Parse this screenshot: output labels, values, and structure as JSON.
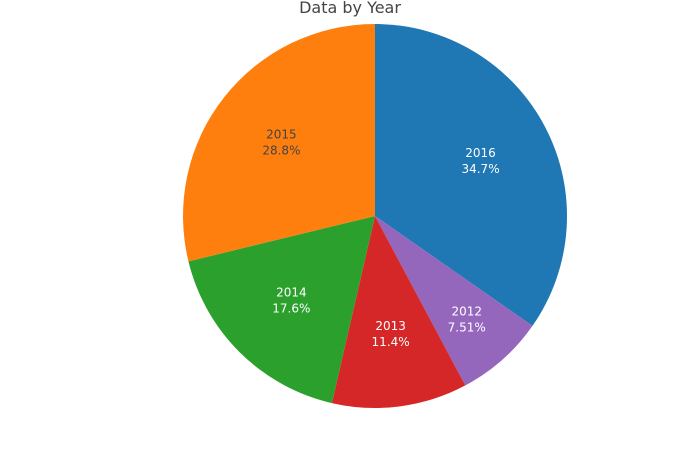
{
  "chart_data": {
    "type": "pie",
    "title": "Data by Year",
    "slices": [
      {
        "label": "2016",
        "percent_text": "34.7%",
        "value": 34.7,
        "color": "#1f77b4",
        "text_color": "#ffffff"
      },
      {
        "label": "2012",
        "percent_text": "7.51%",
        "value": 7.51,
        "color": "#9467bd",
        "text_color": "#ffffff"
      },
      {
        "label": "2013",
        "percent_text": "11.4%",
        "value": 11.4,
        "color": "#d62728",
        "text_color": "#ffffff"
      },
      {
        "label": "2014",
        "percent_text": "17.6%",
        "value": 17.6,
        "color": "#2ca02c",
        "text_color": "#ffffff"
      },
      {
        "label": "2015",
        "percent_text": "28.8%",
        "value": 28.8,
        "color": "#ff7f0e",
        "text_color": "#444444"
      }
    ],
    "direction": "clockwise",
    "start": "top",
    "legend": "none"
  }
}
